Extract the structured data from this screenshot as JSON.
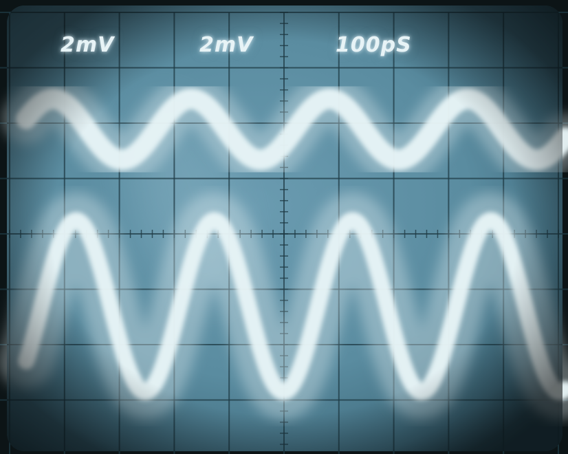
{
  "readouts": {
    "channel1_scale": "2mV",
    "channel2_scale": "2mV",
    "timebase": "100pS"
  },
  "colors": {
    "phosphor": "#e8f4f7",
    "screen": "#5f8fa3",
    "graticule": "#1e3a44",
    "bezel": "#0c1416"
  },
  "traces": [
    {
      "channel": 1,
      "cycles": 3.9,
      "amplitude_div": 0.55,
      "phase_deg": 200
    },
    {
      "channel": 2,
      "cycles": 3.9,
      "amplitude_div": 1.55,
      "phase_deg": 140
    }
  ]
}
